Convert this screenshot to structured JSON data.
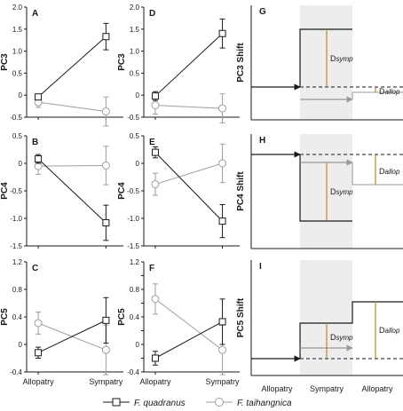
{
  "chart_data": [
    {
      "panel_label": "A",
      "type": "line",
      "ylabel": "PC3",
      "ylim": [
        -0.5,
        2.0
      ],
      "yticks": [
        -0.5,
        0,
        0.5,
        1.0,
        1.5,
        2.0
      ],
      "ytick_labels": [
        "-0.5",
        "0",
        "0.5",
        "1.0",
        "1.5",
        "2.0"
      ],
      "categories": [
        "Allopatry",
        "Sympatry"
      ],
      "series": [
        {
          "name": "F. quadranus",
          "values": [
            -0.04,
            1.33
          ],
          "err": [
            0.06,
            0.3
          ]
        },
        {
          "name": "F. taihangnica",
          "values": [
            -0.16,
            -0.37
          ],
          "err": [
            0.12,
            0.33
          ]
        }
      ]
    },
    {
      "panel_label": "B",
      "type": "line",
      "ylabel": "PC4",
      "ylim": [
        -1.5,
        0.5
      ],
      "yticks": [
        -1.5,
        -1.0,
        -0.5,
        0,
        0.5
      ],
      "ytick_labels": [
        "-1.5",
        "-1.0",
        "-0.5",
        "0",
        "0.5"
      ],
      "categories": [
        "Allopatry",
        "Sympatry"
      ],
      "series": [
        {
          "name": "F. quadranus",
          "values": [
            0.08,
            -1.08
          ],
          "err": [
            0.08,
            0.32
          ]
        },
        {
          "name": "F. taihangnica",
          "values": [
            -0.05,
            -0.04
          ],
          "err": [
            0.15,
            0.35
          ]
        }
      ]
    },
    {
      "panel_label": "C",
      "type": "line",
      "ylabel": "PC5",
      "ylim": [
        -0.4,
        1.2
      ],
      "yticks": [
        -0.4,
        0,
        0.4,
        0.8,
        1.2
      ],
      "ytick_labels": [
        "-0.4",
        "0",
        "0.4",
        "0.8",
        "1.2"
      ],
      "categories": [
        "Allopatry",
        "Sympatry"
      ],
      "series": [
        {
          "name": "F. quadranus",
          "values": [
            -0.12,
            0.35
          ],
          "err": [
            0.08,
            0.33
          ]
        },
        {
          "name": "F. taihangnica",
          "values": [
            0.31,
            -0.08
          ],
          "err": [
            0.16,
            0.36
          ]
        }
      ]
    },
    {
      "panel_label": "D",
      "type": "line",
      "ylabel": "PC3",
      "ylim": [
        -0.5,
        2.0
      ],
      "yticks": [
        -0.5,
        0,
        0.5,
        1.0,
        1.5,
        2.0
      ],
      "ytick_labels": [
        "-0.5",
        "0",
        "0.5",
        "1.0",
        "1.5",
        "2.0"
      ],
      "categories": [
        "Allopatry",
        "Sympatry"
      ],
      "series": [
        {
          "name": "F. quadranus",
          "values": [
            -0.02,
            1.4
          ],
          "err": [
            0.1,
            0.33
          ]
        },
        {
          "name": "F. taihangnica",
          "values": [
            -0.23,
            -0.3
          ],
          "err": [
            0.2,
            0.33
          ]
        }
      ]
    },
    {
      "panel_label": "E",
      "type": "line",
      "ylabel": "PC4",
      "ylim": [
        -1.5,
        0.5
      ],
      "yticks": [
        -1.5,
        -1.0,
        -0.5,
        0,
        0.5
      ],
      "ytick_labels": [
        "-1.5",
        "-1.0",
        "-0.5",
        "0",
        "0.5"
      ],
      "categories": [
        "Allopatry",
        "Sympatry"
      ],
      "series": [
        {
          "name": "F. quadranus",
          "values": [
            0.2,
            -1.05
          ],
          "err": [
            0.1,
            0.3
          ]
        },
        {
          "name": "F. taihangnica",
          "values": [
            -0.38,
            0.0
          ],
          "err": [
            0.2,
            0.35
          ]
        }
      ]
    },
    {
      "panel_label": "F",
      "type": "line",
      "ylabel": "PC5",
      "ylim": [
        -0.4,
        1.2
      ],
      "yticks": [
        -0.4,
        -0.2,
        0,
        0.2,
        0.4,
        0.6,
        0.8,
        1.0,
        1.2
      ],
      "ytick_labels": [
        "-0.4",
        "",
        "0",
        "",
        "0.4",
        "",
        "0.8",
        "",
        "1.2"
      ],
      "categories": [
        "Allopatry",
        "Sympatry"
      ],
      "series": [
        {
          "name": "F. quadranus",
          "values": [
            -0.2,
            0.33
          ],
          "err": [
            0.1,
            0.33
          ]
        },
        {
          "name": "F. taihangnica",
          "values": [
            0.66,
            -0.08
          ],
          "err": [
            0.22,
            0.36
          ]
        }
      ]
    }
  ],
  "xtick_labels": [
    "Allopatry",
    "Sympatry"
  ],
  "legend": {
    "quadranus": "F. quadranus",
    "taihangnica": "F. taihangnica"
  },
  "schematics": [
    {
      "label": "G",
      "ylabel": "PC3 Shift"
    },
    {
      "label": "H",
      "ylabel": "PC4 Shift"
    },
    {
      "label": "I",
      "ylabel": "PC5 Shift"
    }
  ],
  "schematic_xlabels": [
    "Allopatry",
    "Sympatry",
    "Allopatry"
  ],
  "schematic_text": {
    "d": "D",
    "symp": "symp",
    "allop": "allop"
  },
  "colors": {
    "quadranus": "#1a1a1a",
    "taihangnica": "#9e9e9e",
    "sympatry_zone": "#ededed",
    "bracket": "#b8862b",
    "shift_arrow": "#999999"
  }
}
